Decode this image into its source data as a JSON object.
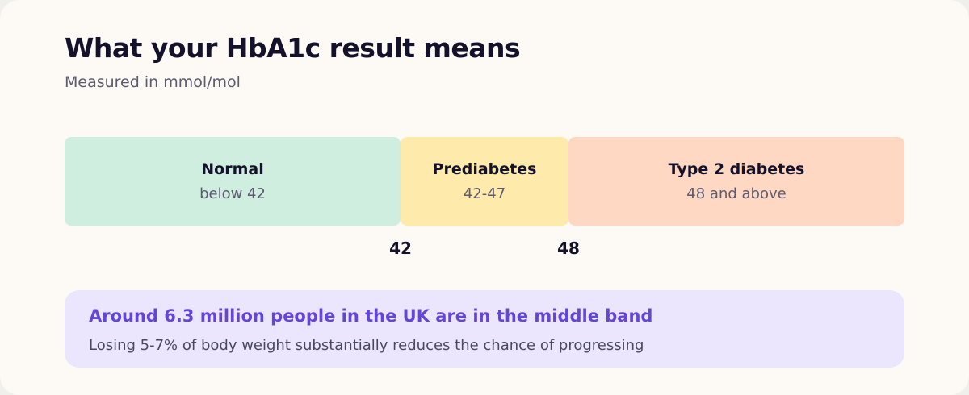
{
  "header": {
    "title": "What your HbA1c result means",
    "subtitle": "Measured in mmol/mol"
  },
  "bands": [
    {
      "label": "Normal",
      "range": "below 42",
      "color": "#cfeee0"
    },
    {
      "label": "Prediabetes",
      "range": "42-47",
      "color": "#feeaab"
    },
    {
      "label": "Type 2 diabetes",
      "range": "48 and above",
      "color": "#ffd8c4"
    }
  ],
  "thresholds": [
    "42",
    "48"
  ],
  "callout": {
    "headline": "Around 6.3 million people in the UK are in the middle band",
    "body": "Losing 5-7% of body weight substantially reduces the chance of progressing",
    "accent_color": "#6345d8",
    "background_color": "#ebe6fd"
  }
}
